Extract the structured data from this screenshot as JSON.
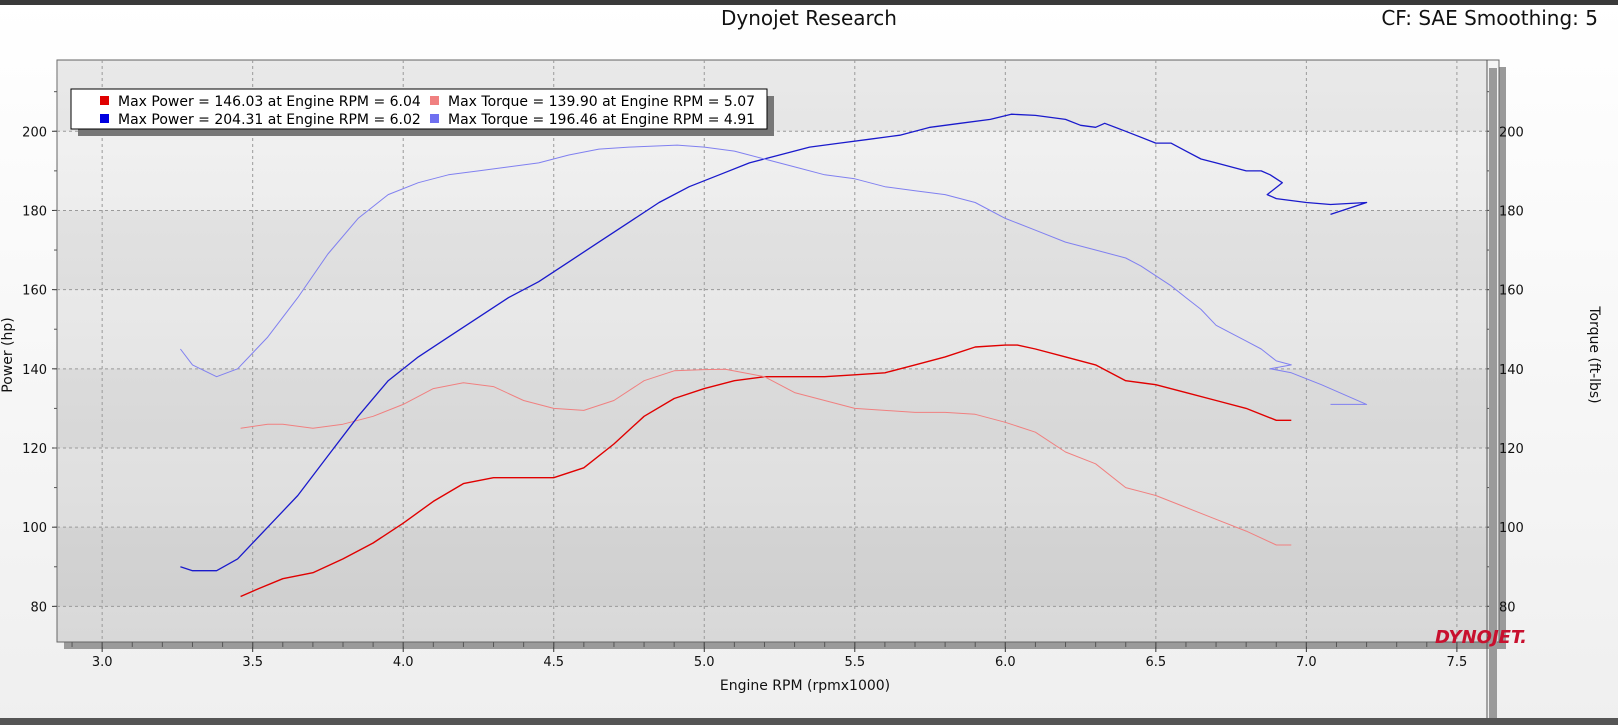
{
  "header": {
    "title": "Dynojet Research",
    "info": "CF: SAE Smoothing: 5"
  },
  "brand": "DYNOJET.",
  "chart_data": {
    "type": "line",
    "xlabel": "Engine RPM (rpmx1000)",
    "ylabel": "Power (hp)",
    "y2label": "Torque (ft-lbs)",
    "xlim": [
      2.85,
      7.6
    ],
    "ylim": [
      71,
      218
    ],
    "y2lim": [
      71,
      218
    ],
    "xticks": [
      "3.0",
      "3.5",
      "4.0",
      "4.5",
      "5.0",
      "5.5",
      "6.0",
      "6.5",
      "7.0",
      "7.5"
    ],
    "yticks": [
      "80",
      "100",
      "120",
      "140",
      "160",
      "180",
      "200"
    ],
    "y2ticks": [
      "80",
      "100",
      "120",
      "140",
      "160",
      "180",
      "200"
    ],
    "grid": true,
    "legend": [
      {
        "text": "Max Power = 146.03 at Engine RPM = 6.04",
        "color": "#e00000"
      },
      {
        "text": "Max Torque = 139.90 at Engine RPM = 5.07",
        "color": "#f08080"
      },
      {
        "text": "Max Power = 204.31 at Engine RPM = 6.02",
        "color": "#0000e0"
      },
      {
        "text": "Max Torque = 196.46 at Engine RPM = 4.91",
        "color": "#7070f0"
      }
    ],
    "series": [
      {
        "axis": "left",
        "color": "#e00000",
        "width": 1.4,
        "x": [
          3.46,
          3.52,
          3.6,
          3.7,
          3.8,
          3.9,
          4.0,
          4.1,
          4.2,
          4.3,
          4.4,
          4.5,
          4.6,
          4.7,
          4.8,
          4.9,
          5.0,
          5.1,
          5.2,
          5.3,
          5.4,
          5.5,
          5.6,
          5.7,
          5.8,
          5.9,
          6.0,
          6.04,
          6.1,
          6.2,
          6.3,
          6.4,
          6.5,
          6.6,
          6.7,
          6.8,
          6.9,
          6.95
        ],
        "y": [
          82.5,
          84.5,
          87,
          88.5,
          92,
          96,
          101,
          106.5,
          111,
          112.5,
          112.5,
          112.5,
          115,
          121,
          128,
          132.5,
          135,
          137,
          138,
          138,
          138,
          138.5,
          139,
          141,
          143,
          145.5,
          146,
          146,
          145,
          143,
          141,
          137,
          136,
          134,
          132,
          130,
          127,
          127
        ]
      },
      {
        "axis": "right",
        "color": "#f08080",
        "width": 1.0,
        "x": [
          3.46,
          3.55,
          3.6,
          3.7,
          3.8,
          3.9,
          4.0,
          4.1,
          4.2,
          4.3,
          4.4,
          4.5,
          4.6,
          4.7,
          4.8,
          4.9,
          5.0,
          5.07,
          5.2,
          5.3,
          5.4,
          5.5,
          5.6,
          5.7,
          5.8,
          5.9,
          6.0,
          6.1,
          6.2,
          6.3,
          6.4,
          6.5,
          6.6,
          6.7,
          6.8,
          6.9,
          6.95
        ],
        "y": [
          125,
          126,
          126,
          125,
          126,
          128,
          131,
          135,
          136.5,
          135.5,
          132,
          130,
          129.5,
          132,
          137,
          139.5,
          139.8,
          139.9,
          138,
          134,
          132,
          130,
          129.5,
          129,
          129,
          128.5,
          126.5,
          124,
          119,
          116,
          110,
          108,
          105,
          102,
          99,
          95.5,
          95.5
        ]
      },
      {
        "axis": "left",
        "color": "#1a1acc",
        "width": 1.3,
        "x": [
          3.26,
          3.3,
          3.38,
          3.45,
          3.55,
          3.65,
          3.75,
          3.85,
          3.95,
          4.05,
          4.15,
          4.25,
          4.35,
          4.45,
          4.55,
          4.65,
          4.75,
          4.85,
          4.95,
          5.05,
          5.15,
          5.25,
          5.35,
          5.45,
          5.55,
          5.65,
          5.75,
          5.85,
          5.95,
          6.02,
          6.1,
          6.2,
          6.25,
          6.3,
          6.33,
          6.4,
          6.5,
          6.55,
          6.6,
          6.65,
          6.7,
          6.75,
          6.8,
          6.85,
          6.88,
          6.92,
          6.87,
          6.9,
          7.0,
          7.08,
          7.2,
          7.08
        ],
        "y": [
          90,
          89,
          89,
          92,
          100,
          108,
          118,
          128,
          137,
          143,
          148,
          153,
          158,
          162,
          167,
          172,
          177,
          182,
          186,
          189,
          192,
          194,
          196,
          197,
          198,
          199,
          201,
          202,
          203,
          204.3,
          204,
          203,
          201.5,
          201,
          202,
          200,
          197,
          197,
          195,
          193,
          192,
          191,
          190,
          190,
          189,
          187,
          184,
          183,
          182,
          181.5,
          182,
          179
        ]
      },
      {
        "axis": "right",
        "color": "#8080f0",
        "width": 1.0,
        "x": [
          3.26,
          3.3,
          3.38,
          3.45,
          3.55,
          3.65,
          3.75,
          3.85,
          3.95,
          4.05,
          4.15,
          4.25,
          4.35,
          4.45,
          4.55,
          4.65,
          4.75,
          4.85,
          4.91,
          5.0,
          5.1,
          5.2,
          5.3,
          5.4,
          5.5,
          5.6,
          5.7,
          5.8,
          5.9,
          6.0,
          6.1,
          6.2,
          6.3,
          6.4,
          6.45,
          6.55,
          6.6,
          6.65,
          6.7,
          6.75,
          6.8,
          6.85,
          6.9,
          6.95,
          6.88,
          6.95,
          7.05,
          7.2,
          7.08
        ],
        "y": [
          145,
          141,
          138,
          140,
          148,
          158,
          169,
          178,
          184,
          187,
          189,
          190,
          191,
          192,
          194,
          195.5,
          196,
          196.3,
          196.5,
          196,
          195,
          193,
          191,
          189,
          188,
          186,
          185,
          184,
          182,
          178,
          175,
          172,
          170,
          168,
          166,
          161,
          158,
          155,
          151,
          149,
          147,
          145,
          142,
          141,
          140,
          139,
          136,
          131,
          131
        ]
      }
    ]
  }
}
